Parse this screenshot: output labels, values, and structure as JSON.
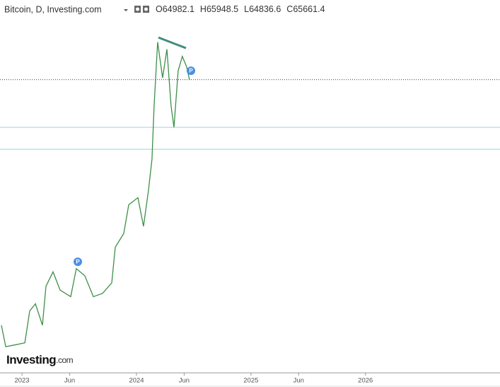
{
  "chart_data": {
    "type": "line",
    "title": "Bitcoin, D, Investing.com",
    "ohlc": [
      {
        "label": "O",
        "value": 64982.1
      },
      {
        "label": "H",
        "value": 65948.5
      },
      {
        "label": "L",
        "value": 64836.6
      },
      {
        "label": "C",
        "value": 65661.4
      }
    ],
    "logo": [
      "Investing",
      ".com"
    ],
    "markers": [
      "P",
      "P"
    ],
    "xlim": [
      -2.3,
      50.1
    ],
    "ylim": [
      12600,
      76300
    ],
    "xticks": [
      {
        "value": 0,
        "label": "2023"
      },
      {
        "value": 5,
        "label": "Jun"
      },
      {
        "value": 12,
        "label": "2024"
      },
      {
        "value": 17,
        "label": "Jun"
      },
      {
        "value": 24,
        "label": "2025"
      },
      {
        "value": 29,
        "label": "Jun"
      },
      {
        "value": 36,
        "label": "2026"
      }
    ],
    "reference_lines": [
      57000,
      53000
    ],
    "last_price_line": 65661.4,
    "series": [
      {
        "name": "Bitcoin",
        "color": "#3d8f4a",
        "x": [
          -2.15,
          -1.7,
          -0.81,
          0.3,
          0.81,
          1.41,
          2.15,
          2.52,
          3.26,
          4.0,
          5.11,
          5.7,
          6.59,
          7.48,
          8.44,
          9.41,
          9.78,
          10.67,
          11.19,
          12.15,
          12.74,
          13.26,
          13.63,
          13.85,
          14.22,
          14.74,
          15.19,
          15.63,
          15.93,
          16.37,
          16.81,
          17.26,
          17.56
        ],
        "values": [
          21000,
          17100,
          17400,
          17800,
          23600,
          24900,
          21000,
          28100,
          30700,
          27400,
          26200,
          31300,
          30000,
          26200,
          26800,
          28700,
          35200,
          37700,
          42900,
          44200,
          39000,
          45500,
          51200,
          60900,
          72500,
          66000,
          71200,
          60900,
          57000,
          67300,
          69900,
          68000,
          65600
        ]
      }
    ]
  }
}
